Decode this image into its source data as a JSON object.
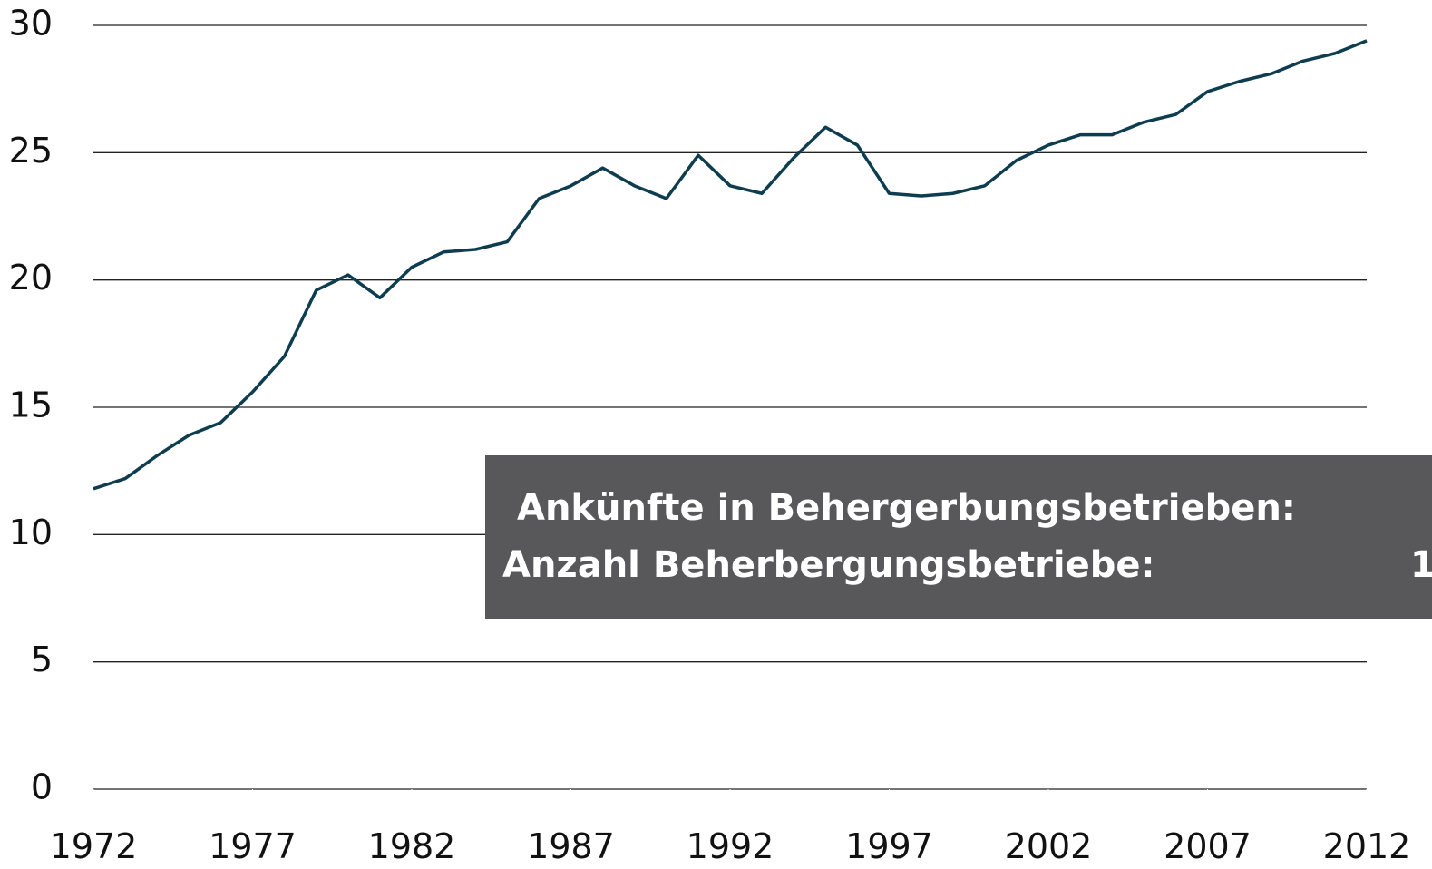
{
  "chart_data": {
    "type": "line",
    "x": [
      1972,
      1973,
      1974,
      1975,
      1976,
      1977,
      1978,
      1979,
      1980,
      1981,
      1982,
      1983,
      1984,
      1985,
      1986,
      1987,
      1988,
      1989,
      1990,
      1991,
      1992,
      1993,
      1994,
      1995,
      1996,
      1997,
      1998,
      1999,
      2000,
      2001,
      2002,
      2003,
      2004,
      2005,
      2006,
      2007,
      2008,
      2009,
      2010,
      2011,
      2012
    ],
    "series": [
      {
        "color": "#0d3d4f",
        "values": [
          11.8,
          12.2,
          13.1,
          13.9,
          14.4,
          15.6,
          17.0,
          19.6,
          20.2,
          19.3,
          20.5,
          21.1,
          21.2,
          21.5,
          23.2,
          23.7,
          24.4,
          23.7,
          23.2,
          24.9,
          23.7,
          23.4,
          24.8,
          26.0,
          25.3,
          23.4,
          23.3,
          23.4,
          23.7,
          24.7,
          25.3,
          25.7,
          25.7,
          26.2,
          26.5,
          27.4,
          27.8,
          28.1,
          28.6,
          28.9,
          29.4
        ]
      }
    ],
    "xlim": [
      1972,
      2012
    ],
    "xticks": [
      1972,
      1977,
      1982,
      1987,
      1992,
      1997,
      2002,
      2007,
      2012
    ],
    "ylim": [
      0,
      30
    ],
    "yticks": [
      0,
      5,
      10,
      15,
      20,
      25,
      30
    ],
    "grid": true,
    "tooltip": {
      "lines": [
        "Ankünfte in Behergerbungsbetrieben:",
        "Anzahl Beherbergungsbetriebe:"
      ],
      "value": "1"
    }
  }
}
